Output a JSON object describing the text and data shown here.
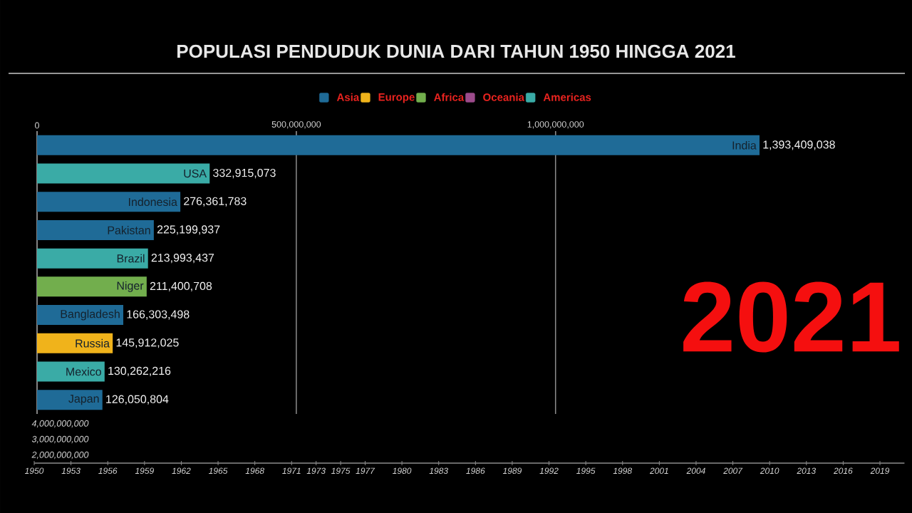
{
  "chart_data": [
    {
      "type": "bar",
      "title": "POPULASI PENDUDUK DUNIA DARI TAHUN 1950 HINGGA 2021",
      "orientation": "horizontal",
      "categories": [
        "India",
        "USA",
        "Indonesia",
        "Pakistan",
        "Brazil",
        "Niger",
        "Bangladesh",
        "Russia",
        "Mexico",
        "Japan"
      ],
      "series": [
        {
          "name": "Asia",
          "color": "#1f6b97",
          "values": [
            1393409038,
            null,
            276361783,
            225199937,
            null,
            null,
            166303498,
            null,
            null,
            126050804
          ],
          "value_labels": [
            "1,393,409,038",
            null,
            "276,361,783",
            "225,199,937",
            null,
            null,
            "166,303,498",
            null,
            null,
            "126,050,804"
          ]
        },
        {
          "name": "Europe",
          "color": "#f0b31b",
          "values": [
            null,
            null,
            null,
            null,
            null,
            null,
            null,
            145912025,
            null,
            null
          ],
          "value_labels": [
            null,
            null,
            null,
            null,
            null,
            null,
            null,
            "145,912,025",
            null,
            null
          ]
        },
        {
          "name": "Africa",
          "color": "#72ae4d",
          "values": [
            null,
            null,
            null,
            null,
            null,
            211400708,
            null,
            null,
            null,
            null
          ],
          "value_labels": [
            null,
            null,
            null,
            null,
            null,
            "211,400,708",
            null,
            null,
            null,
            null
          ]
        },
        {
          "name": "Oceania",
          "color": "#9c4b8b",
          "values": [
            null,
            null,
            null,
            null,
            null,
            null,
            null,
            null,
            null,
            null
          ]
        },
        {
          "name": "Americas",
          "color": "#3aaba6",
          "values": [
            null,
            332915073,
            null,
            null,
            213993437,
            null,
            null,
            null,
            130262216,
            null
          ],
          "value_labels": [
            null,
            "332,915,073",
            null,
            null,
            "213,993,437",
            null,
            null,
            null,
            "130,262,216",
            null
          ]
        }
      ],
      "xlim": [
        0,
        1393409038
      ],
      "xticks": [
        0,
        {
          "value": 500000000,
          "label": "500,000,000"
        },
        {
          "value": 1000000000,
          "label": "1,000,000,000"
        }
      ],
      "grid": "x",
      "legend": "top",
      "annotations": [
        "2021"
      ]
    },
    {
      "type": "line",
      "xlim": [
        1950,
        2021
      ],
      "xticks": [
        1950,
        1953,
        1956,
        1959,
        1962,
        1965,
        1968,
        1971,
        1973,
        1975,
        1977,
        1980,
        1983,
        1986,
        1989,
        1992,
        1995,
        1998,
        2001,
        2004,
        2007,
        2010,
        2013,
        2016,
        2019
      ],
      "ylim": [
        1500000000,
        4000000000
      ],
      "yticks": [
        {
          "value": 2000000000,
          "label": "2,000,000,000"
        },
        {
          "value": 3000000000,
          "label": "3,000,000,000"
        },
        {
          "value": 4000000000,
          "label": "4,000,000,000"
        }
      ]
    }
  ]
}
